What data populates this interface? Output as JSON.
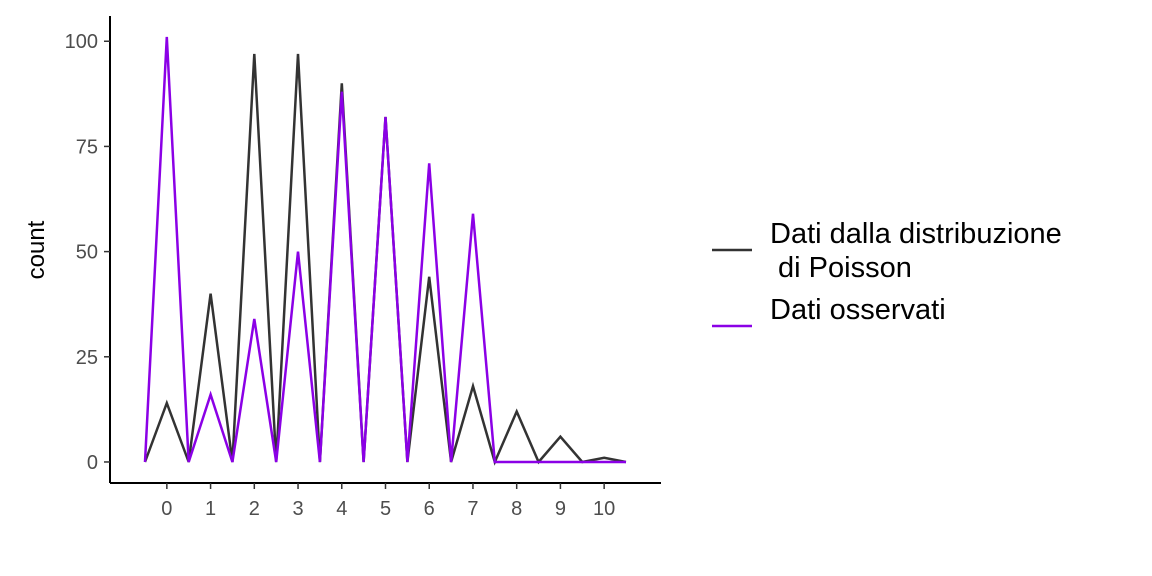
{
  "chart_data": {
    "type": "line",
    "xlabel": "",
    "ylabel": "count",
    "x": [
      -0.5,
      0,
      0.5,
      1,
      1.5,
      2,
      2.5,
      3,
      3.5,
      4,
      4.5,
      5,
      5.5,
      6,
      6.5,
      7,
      7.5,
      8,
      8.5,
      9,
      9.5,
      10,
      10.5
    ],
    "xticks": [
      "0",
      "1",
      "2",
      "3",
      "4",
      "5",
      "6",
      "7",
      "8",
      "9",
      "10"
    ],
    "xlim": [
      -1.3,
      11.3
    ],
    "yticks": [
      "0",
      "25",
      "50",
      "75",
      "100"
    ],
    "ylim": [
      -5,
      106
    ],
    "grid": false,
    "legend": "right",
    "series": [
      {
        "name_lines": [
          "Dati dalla distribuzione",
          " di Poisson"
        ],
        "color": "#333333",
        "values": [
          0,
          14,
          0,
          40,
          0,
          97,
          0,
          97,
          0,
          90,
          0,
          82,
          0,
          44,
          0,
          18,
          0,
          12,
          0,
          6,
          0,
          1,
          0
        ]
      },
      {
        "name_lines": [
          "Dati osservati"
        ],
        "color": "#8B00E6",
        "values": [
          0,
          101,
          0,
          16,
          0,
          34,
          0,
          50,
          0,
          88,
          0,
          82,
          0,
          71,
          0,
          59,
          0,
          0,
          0,
          0,
          0,
          0,
          0
        ]
      }
    ]
  }
}
